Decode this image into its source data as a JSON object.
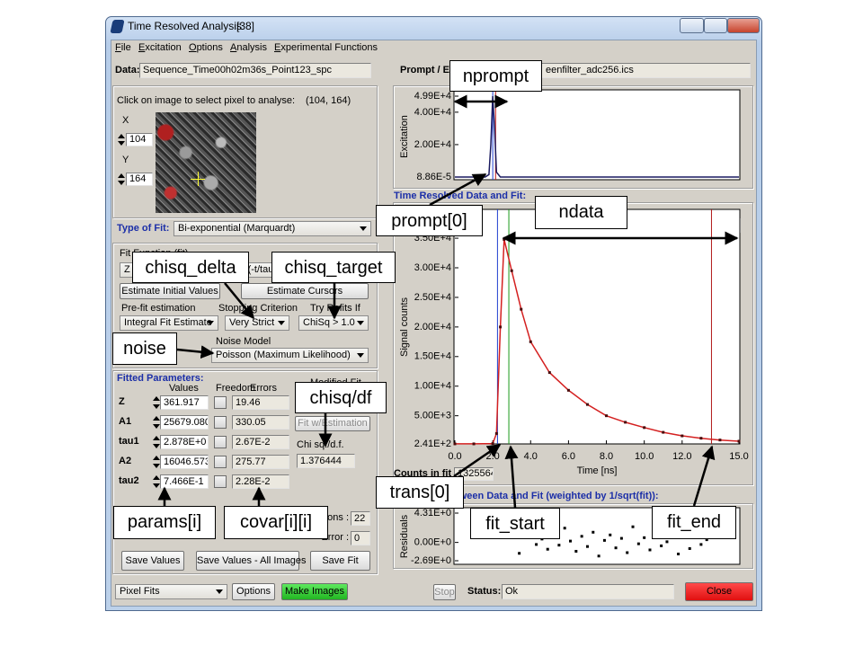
{
  "window": {
    "title": "Time Resolved Analysis",
    "number": "[38]"
  },
  "menu": [
    "File",
    "Excitation",
    "Options",
    "Analysis",
    "Experimental Functions"
  ],
  "data": {
    "label": "Data:",
    "file": "Sequence_Time00h02m36s_Point123_spc"
  },
  "prompt": {
    "label": "Prompt / Ex",
    "file": "eenfilter_adc256.ics"
  },
  "image_panel": {
    "instruction": "Click on image to select pixel to analyse:",
    "coords": "(104, 164)",
    "x_label": "X",
    "x": "104",
    "y_label": "Y",
    "y": "164"
  },
  "fit": {
    "type_label": "Type of Fit:",
    "type": "Bi-exponential (Marquardt)",
    "function_label": "Fit Function (fit)",
    "function": "Z + A1 exp(-t/tau1) + A2 exp(-t/tau2)",
    "estimate_initial": "Estimate Initial Values",
    "estimate_cursors": "Estimate Cursors",
    "prefit_label": "Pre-fit estimation",
    "prefit": "Integral Fit Estimate",
    "stopping_label": "Stopping Criterion",
    "stopping": "Very Strict",
    "refit_label": "Try Refits If",
    "refit": "ChiSq > 1.0",
    "noise_label": "Noise Model",
    "noise": "Poisson (Maximum Likelihood)"
  },
  "parameters": {
    "title": "Fitted Parameters:",
    "headers": [
      "Values",
      "Freedom",
      "Errors"
    ],
    "rows": [
      {
        "name": "Z",
        "value": "361.917",
        "error": "19.46"
      },
      {
        "name": "A1",
        "value": "25679.080",
        "error": "330.05"
      },
      {
        "name": "tau1",
        "value": "2.878E+0",
        "error": "2.67E-2"
      },
      {
        "name": "A2",
        "value": "16046.573",
        "error": "275.77"
      },
      {
        "name": "tau2",
        "value": "7.466E-1",
        "error": "2.28E-2"
      }
    ],
    "modified_label": "Modified Fit",
    "fit_button": "Fit w/Estimation",
    "chisq_label": "Chi sq./d.f.",
    "chisq": "1.376444",
    "iterations_label": "Iterations :",
    "iterations": "22",
    "error_label": "Error :",
    "error": "0"
  },
  "buttons": {
    "save_values": "Save Values",
    "save_all": "Save Values - All Images",
    "save_fit": "Save Fit"
  },
  "footer": {
    "mode": "Pixel Fits",
    "options": "Options",
    "make_images": "Make Images",
    "stop": "Stop",
    "status_label": "Status:",
    "status": "Ok",
    "close": "Close"
  },
  "plots": {
    "prompt": {
      "type": "line",
      "ylabel": "Excitation",
      "option": "X 10",
      "color": "#1a1a60",
      "x": [
        0,
        1.6,
        1.8,
        1.9,
        2.0,
        2.1,
        2.2,
        2.4,
        15
      ],
      "values": [
        0,
        0,
        1500,
        20000,
        49900,
        30000,
        3000,
        0,
        0
      ],
      "xlim": [
        0,
        15
      ],
      "ylim": [
        8.86e-05,
        49900
      ],
      "yticks": [
        {
          "value": 49900,
          "label": "4.99E+4"
        },
        {
          "value": 40000,
          "label": "4.00E+4"
        },
        {
          "value": 20000,
          "label": "2.00E+4"
        },
        {
          "value": 8.86e-05,
          "label": "8.86E-5"
        }
      ],
      "cursors": [
        {
          "x": 2.0,
          "color": "#1f3fd0"
        },
        {
          "x": 2.15,
          "color": "#c01818"
        }
      ]
    },
    "decay_title": "Time Resolved Data and Fit:",
    "decay": {
      "type": "line",
      "ylabel": "Signal counts",
      "xlabel": "Time [ns]",
      "scale": "lin",
      "counts_label": "Counts in fit",
      "counts": "1325564",
      "color": "#d42020",
      "marker_color": "#4a0c0c",
      "x": [
        0,
        1,
        2,
        2.2,
        2.4,
        2.6,
        3,
        3.5,
        4,
        5,
        6,
        7,
        8,
        9,
        10,
        11,
        12,
        13,
        14,
        15
      ],
      "values": [
        250,
        250,
        300,
        2000,
        20000,
        34800,
        29500,
        23000,
        17500,
        12300,
        9300,
        6900,
        5000,
        3900,
        3000,
        2200,
        1600,
        1200,
        900,
        700
      ],
      "xlim": [
        0,
        15
      ],
      "ylim": [
        241,
        39870
      ],
      "xticks": [
        {
          "value": 0,
          "label": "0.0"
        },
        {
          "value": 2,
          "label": "2.0"
        },
        {
          "value": 4,
          "label": "4.0"
        },
        {
          "value": 6,
          "label": "6.0"
        },
        {
          "value": 8,
          "label": "8.0"
        },
        {
          "value": 10,
          "label": "10.0"
        },
        {
          "value": 12,
          "label": "12.0"
        },
        {
          "value": 15,
          "label": "15.0"
        }
      ],
      "yticks": [
        {
          "value": 35000,
          "label": "3.50E+4"
        },
        {
          "value": 30000,
          "label": "3.00E+4"
        },
        {
          "value": 25000,
          "label": "2.50E+4"
        },
        {
          "value": 20000,
          "label": "2.00E+4"
        },
        {
          "value": 15000,
          "label": "1.50E+4"
        },
        {
          "value": 10000,
          "label": "1.00E+4"
        },
        {
          "value": 5000,
          "label": "5.00E+3"
        },
        {
          "value": 241,
          "label": "2.41E+2"
        }
      ],
      "cursors": [
        {
          "x": 2.25,
          "color": "#1f3fd0"
        },
        {
          "x": 2.85,
          "color": "#1a9a1a"
        },
        {
          "x": 13.55,
          "color": "#b01818"
        }
      ]
    },
    "residuals_title": "Residuals Between Data and Fit (weighted by 1/sqrt(fit)):",
    "residuals": {
      "type": "scatter",
      "ylabel": "Residuals",
      "color": "#000000",
      "x": [
        3.4,
        3.7,
        4.0,
        4.3,
        4.6,
        4.9,
        5.2,
        5.5,
        5.8,
        6.1,
        6.4,
        6.7,
        7.0,
        7.3,
        7.6,
        7.9,
        8.2,
        8.5,
        8.8,
        9.1,
        9.4,
        9.7,
        10.0,
        10.3,
        10.6,
        10.9,
        11.2,
        11.5,
        11.8,
        12.1,
        12.4,
        12.7,
        13.0,
        13.3
      ],
      "values": [
        -1.6,
        0.8,
        1.9,
        -0.3,
        0.5,
        -1.0,
        1.2,
        -0.4,
        2.1,
        0.2,
        -1.3,
        0.9,
        -0.6,
        1.5,
        -2.0,
        0.3,
        1.1,
        -0.8,
        0.6,
        -1.5,
        2.3,
        -0.2,
        0.7,
        -1.1,
        1.4,
        -0.5,
        0.1,
        2.6,
        -1.7,
        0.9,
        -0.9,
        1.8,
        -0.3,
        0.4
      ],
      "xlim": [
        0,
        15
      ],
      "ylim": [
        -2.69,
        4.31
      ],
      "yticks": [
        {
          "value": 4.31,
          "label": "4.31E+0"
        },
        {
          "value": 0,
          "label": "0.00E+0"
        },
        {
          "value": -2.69,
          "label": "-2.69E+0"
        }
      ]
    }
  },
  "annotations": [
    "nprompt",
    "prompt[0]",
    "ndata",
    "chisq_delta",
    "chisq_target",
    "noise",
    "chisq/df",
    "trans[0]",
    "params[i]",
    "covar[i][i]",
    "fit_start",
    "fit_end"
  ]
}
